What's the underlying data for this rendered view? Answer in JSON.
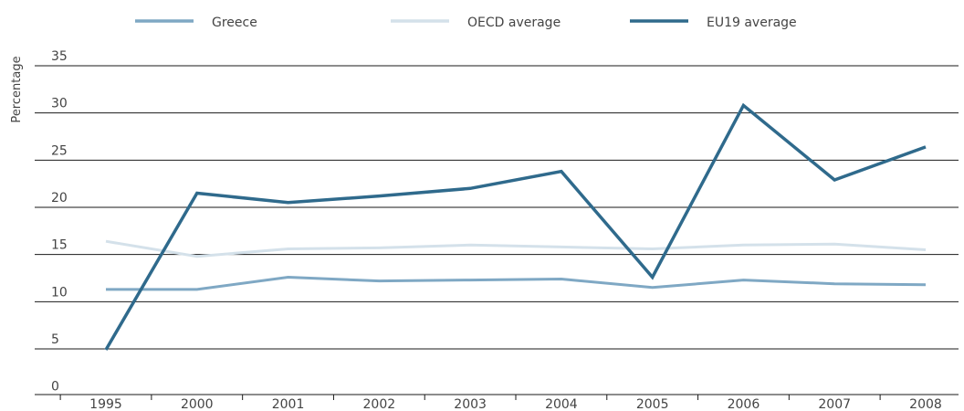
{
  "chart_data": {
    "type": "line",
    "title": "",
    "xlabel": "",
    "ylabel": "Percentage",
    "ylim": [
      0,
      35
    ],
    "yticks": [
      0,
      5,
      10,
      15,
      20,
      25,
      30,
      35
    ],
    "categories": [
      "1995",
      "2000",
      "2001",
      "2002",
      "2003",
      "2004",
      "2005",
      "2006",
      "2007",
      "2008"
    ],
    "grid": true,
    "legend_position": "top",
    "series": [
      {
        "name": "Greece",
        "color": "#7fa8c4",
        "values": [
          11.3,
          11.3,
          12.6,
          12.2,
          12.3,
          12.4,
          11.5,
          12.3,
          11.9,
          11.8
        ]
      },
      {
        "name": "OECD average",
        "color": "#d4e1ea",
        "values": [
          16.4,
          14.8,
          15.6,
          15.7,
          16.0,
          15.8,
          15.6,
          16.0,
          16.1,
          15.5
        ]
      },
      {
        "name": "EU19 average",
        "color": "#2f6a8c",
        "values": [
          4.9,
          21.5,
          20.5,
          21.2,
          22.0,
          23.8,
          12.6,
          30.8,
          22.9,
          26.4
        ]
      }
    ]
  }
}
